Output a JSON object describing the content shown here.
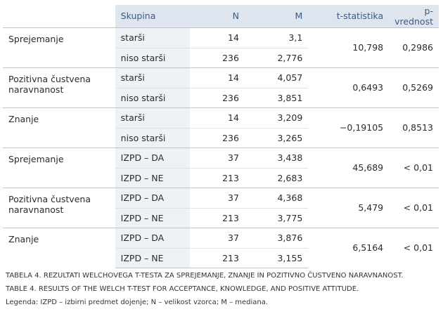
{
  "headers": {
    "group": "Skupina",
    "n": "N",
    "m": "M",
    "t": "t-statistika",
    "p": "p-vrednost"
  },
  "rows": [
    {
      "variable": "Sprejemanje",
      "group1": "starši",
      "n1": "14",
      "m1": "3,1",
      "group2": "niso starši",
      "n2": "236",
      "m2": "2,776",
      "t": "10,798",
      "p": "0,2986"
    },
    {
      "variable": "Pozitivna čustvena naravnanost",
      "group1": "starši",
      "n1": "14",
      "m1": "4,057",
      "group2": "niso starši",
      "n2": "236",
      "m2": "3,851",
      "t": "0,6493",
      "p": "0,5269"
    },
    {
      "variable": "Znanje",
      "group1": "starši",
      "n1": "14",
      "m1": "3,209",
      "group2": "niso starši",
      "n2": "236",
      "m2": "3,265",
      "t": "−0,19105",
      "p": "0,8513"
    },
    {
      "variable": "Sprejemanje",
      "group1": "IZPD – DA",
      "n1": "37",
      "m1": "3,438",
      "group2": "IZPD – NE",
      "n2": "213",
      "m2": "2,683",
      "t": "45,689",
      "p": "< 0,01"
    },
    {
      "variable": "Pozitivna čustvena naravnanost",
      "group1": "IZPD – DA",
      "n1": "37",
      "m1": "4,368",
      "group2": "IZPD – NE",
      "n2": "213",
      "m2": "3,775",
      "t": "5,479",
      "p": "< 0,01"
    },
    {
      "variable": "Znanje",
      "group1": "IZPD – DA",
      "n1": "37",
      "m1": "3,876",
      "group2": "IZPD – NE",
      "n2": "213",
      "m2": "3,155",
      "t": "6,5164",
      "p": "< 0,01"
    }
  ],
  "caption": {
    "line1": "TABELA 4. REZULTATI WELCHOVEGA T-TESTA ZA SPREJEMANJE, ZNANJE IN POZITIVNO ČUSTVENO NARAVNANOST.",
    "line2": "TABLE 4. RESULTS OF THE WELCH T-TEST FOR ACCEPTANCE, KNOWLEDGE, AND POSITIVE ATTITUDE.",
    "line3": "Legenda: IZPD – izbirni predmet dojenje; N – velikost vzorca; M – mediana."
  },
  "colors": {
    "header_text": "#3d5a80",
    "header_bg": "#dfe5ee",
    "group_bg": "#eef1f6"
  }
}
